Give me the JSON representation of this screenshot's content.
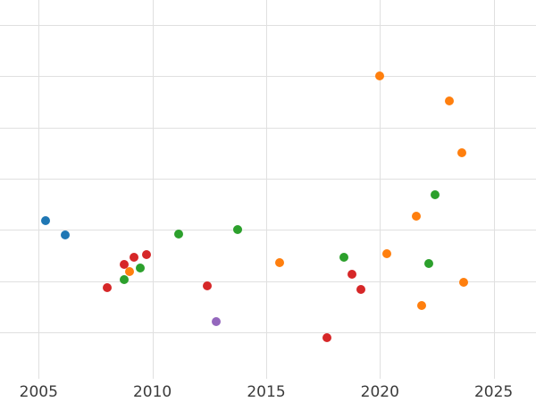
{
  "style": {
    "background": "#ffffff",
    "grid_color": "#e0e0e0",
    "tick_label_color": "#3b3b3b"
  },
  "chart_data": {
    "type": "scatter",
    "title": "",
    "xlabel": "",
    "ylabel": "",
    "grid": true,
    "legend_position": "none",
    "x_tick_labels": [
      "2005",
      "2010",
      "2015",
      "2020",
      "2025"
    ],
    "x_ticks": [
      2005,
      2010,
      2015,
      2020,
      2025
    ],
    "x_range": [
      2003.3,
      2026.86
    ],
    "y_tick_labels_visible": false,
    "y_unit_note": "y-axis labels cropped out of view; values given in gridline steps (0 = lowest visible gridline)",
    "y_gridlines": [
      0,
      1,
      2,
      3,
      4,
      5,
      6
    ],
    "y_range": [
      -0.91,
      6.49
    ],
    "series": [
      {
        "name": "blue",
        "color": "#1f77b4",
        "points": [
          [
            2005.29,
            2.18
          ],
          [
            2006.18,
            1.9
          ]
        ]
      },
      {
        "name": "red",
        "color": "#d62728",
        "points": [
          [
            2008.01,
            0.87
          ],
          [
            2008.77,
            1.33
          ],
          [
            2009.19,
            1.47
          ],
          [
            2009.75,
            1.51
          ],
          [
            2012.41,
            0.91
          ],
          [
            2017.66,
            -0.11
          ],
          [
            2018.77,
            1.14
          ],
          [
            2019.17,
            0.84
          ]
        ]
      },
      {
        "name": "green",
        "color": "#2ca02c",
        "points": [
          [
            2008.77,
            1.03
          ],
          [
            2009.45,
            1.26
          ],
          [
            2011.15,
            1.92
          ],
          [
            2013.74,
            2.01
          ],
          [
            2018.43,
            1.46
          ],
          [
            2022.16,
            1.34
          ],
          [
            2022.41,
            2.69
          ]
        ]
      },
      {
        "name": "orange",
        "color": "#ff7f0e",
        "points": [
          [
            2008.99,
            1.19
          ],
          [
            2015.58,
            1.36
          ],
          [
            2019.99,
            5.01
          ],
          [
            2020.29,
            1.54
          ],
          [
            2021.58,
            2.27
          ],
          [
            2021.84,
            0.53
          ],
          [
            2023.05,
            4.51
          ],
          [
            2023.58,
            3.51
          ],
          [
            2023.69,
            0.97
          ]
        ]
      },
      {
        "name": "purple",
        "color": "#9467bd",
        "points": [
          [
            2012.79,
            0.21
          ]
        ]
      }
    ]
  }
}
